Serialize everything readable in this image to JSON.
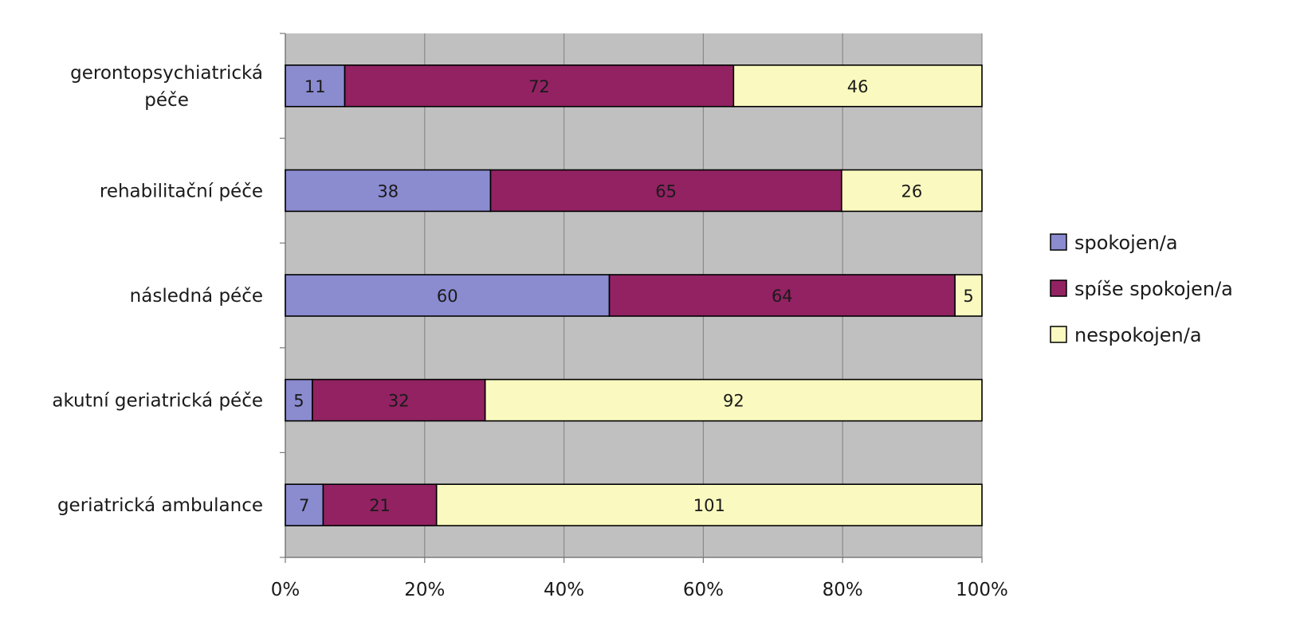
{
  "chart_data": {
    "type": "bar",
    "orientation": "horizontal",
    "stacked": "percent",
    "categories": [
      "gerontopsychiatrická péče",
      "rehabilitační péče",
      "následná péče",
      "akutní geriatrická péče",
      "geriatrická ambulance"
    ],
    "category_lines": [
      [
        "gerontopsychiatrická",
        "péče"
      ],
      [
        "rehabilitační péče"
      ],
      [
        "následná péče"
      ],
      [
        "akutní geriatrická péče"
      ],
      [
        "geriatrická ambulance"
      ]
    ],
    "series": [
      {
        "name": "spokojen/a",
        "color": "#8b8bd0",
        "values": [
          11,
          38,
          60,
          5,
          7
        ]
      },
      {
        "name": "spíše spokojen/a",
        "color": "#922262",
        "values": [
          72,
          65,
          64,
          32,
          21
        ]
      },
      {
        "name": "nespokojen/a",
        "color": "#fafac0",
        "values": [
          46,
          26,
          5,
          92,
          101
        ]
      }
    ],
    "xlim": [
      0,
      100
    ],
    "x_ticks": [
      "0%",
      "20%",
      "40%",
      "60%",
      "80%",
      "100%"
    ],
    "x_tick_values": [
      0,
      20,
      40,
      60,
      80,
      100
    ],
    "plot_background": "#c0c0c0",
    "grid": true,
    "legend_position": "right",
    "title": "",
    "xlabel": "",
    "ylabel": ""
  }
}
